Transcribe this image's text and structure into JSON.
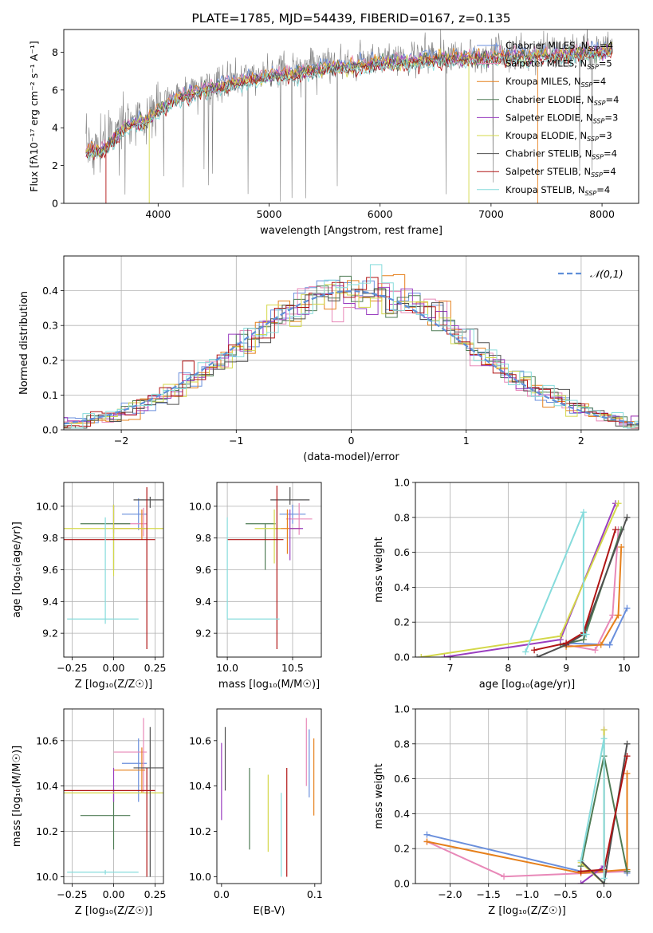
{
  "colors": {
    "Chabrier MILES": "#6a8fdc",
    "Salpeter MILES": "#e888b8",
    "Kroupa MILES": "#e6801c",
    "Chabrier ELODIE": "#4f7c55",
    "Salpeter ELODIE": "#9a3ec0",
    "Kroupa ELODIE": "#d4d84a",
    "Chabrier STELIB": "#505050",
    "Salpeter STELIB": "#b01414",
    "Kroupa STELIB": "#86dcdc",
    "gaussian": "#5f8fd8",
    "grid": "#b0b0b0",
    "observed": "#808080"
  },
  "chart_data": [
    {
      "id": "spectrum",
      "type": "line",
      "title": "PLATE=1785, MJD=54439, FIBERID=0167, z=0.135",
      "xlabel": "wavelength [Angstrom, rest frame]",
      "ylabel": "Flux [fλ10⁻¹⁷ erg cm⁻² s⁻¹ A⁻¹]",
      "xlim": [
        3150,
        8330
      ],
      "ylim": [
        0,
        9.2
      ],
      "xticks": [
        4000,
        5000,
        6000,
        7000,
        8000
      ],
      "yticks": [
        0,
        2,
        4,
        6,
        8
      ],
      "legend": "top-right",
      "legend_entries": [
        {
          "name": "Chabrier MILES",
          "nssp": "4"
        },
        {
          "name": "Salpeter MILES",
          "nssp": "5"
        },
        {
          "name": "Kroupa MILES",
          "nssp": "4"
        },
        {
          "name": "Chabrier ELODIE",
          "nssp": "4"
        },
        {
          "name": "Salpeter ELODIE",
          "nssp": "3"
        },
        {
          "name": "Kroupa ELODIE",
          "nssp": "3"
        },
        {
          "name": "Chabrier STELIB",
          "nssp": "4"
        },
        {
          "name": "Salpeter STELIB",
          "nssp": "4"
        },
        {
          "name": "Kroupa STELIB",
          "nssp": "4"
        }
      ],
      "continuum": [
        [
          3350,
          2.9
        ],
        [
          3500,
          3.0
        ],
        [
          3700,
          4.2
        ],
        [
          3900,
          4.6
        ],
        [
          4000,
          5.1
        ],
        [
          4200,
          5.8
        ],
        [
          4500,
          6.3
        ],
        [
          5000,
          6.9
        ],
        [
          5500,
          7.3
        ],
        [
          6000,
          7.6
        ],
        [
          6500,
          7.8
        ],
        [
          7000,
          7.9
        ],
        [
          7500,
          8.0
        ],
        [
          8000,
          8.2
        ],
        [
          8100,
          8.3
        ]
      ],
      "observed_noise": 0.45
    },
    {
      "id": "residuals",
      "type": "histogram",
      "xlabel": "(data-model)/error",
      "ylabel": "Normed distribution",
      "xlim": [
        -2.5,
        2.5
      ],
      "ylim": [
        0,
        0.5
      ],
      "xticks": [
        -2,
        -1,
        0,
        1,
        2
      ],
      "yticks": [
        0,
        0.1,
        0.2,
        0.3,
        0.4
      ],
      "grid": true,
      "legend": "top-right",
      "legend_label": "𝒩(0,1)",
      "bin_width": 0.1
    },
    {
      "id": "age-z",
      "type": "errorbar",
      "xlabel": "Z [log₁₀(Z/Z☉)]",
      "ylabel": "age  [log₁₀(age/yr)]",
      "xlim": [
        -0.3,
        0.3
      ],
      "ylim": [
        9.05,
        10.15
      ],
      "xticks": [
        -0.25,
        0.0,
        0.25
      ],
      "xtick_labels": [
        "−0.25",
        "0.00",
        "0.25"
      ],
      "yticks": [
        9.2,
        9.4,
        9.6,
        9.8,
        10.0
      ],
      "grid": true,
      "points": [
        {
          "model": "Chabrier MILES",
          "x": 0.15,
          "xerr": [
            0.1,
            0.05
          ],
          "y": 9.95,
          "yerr": [
            0.1,
            0.1
          ]
        },
        {
          "model": "Salpeter MILES",
          "x": 0.18,
          "xerr": [
            0.18,
            0.02
          ],
          "y": 9.89,
          "yerr": [
            0.08,
            0.1
          ]
        },
        {
          "model": "Kroupa MILES",
          "x": 0.17,
          "xerr": [
            0.17,
            0.02
          ],
          "y": 9.86,
          "yerr": [
            0.07,
            0.12
          ]
        },
        {
          "model": "Chabrier ELODIE",
          "x": 0.0,
          "xerr": [
            0.2,
            0.1
          ],
          "y": 9.89,
          "yerr": [
            0.29,
            0.12
          ]
        },
        {
          "model": "Salpeter ELODIE",
          "x": 0.0,
          "xerr": [
            0.0,
            0.0
          ],
          "y": 9.83,
          "yerr": [
            0.0,
            0.17
          ]
        },
        {
          "model": "Kroupa ELODIE",
          "x": 0.0,
          "xerr": [
            0.3,
            0.3
          ],
          "y": 9.86,
          "yerr": [
            0.3,
            0.15
          ]
        },
        {
          "model": "Chabrier STELIB",
          "x": 0.22,
          "xerr": [
            0.1,
            0.1
          ],
          "y": 10.04,
          "yerr": [
            0.05,
            0.02
          ]
        },
        {
          "model": "Salpeter STELIB",
          "x": 0.2,
          "xerr": [
            0.5,
            0.05
          ],
          "y": 9.79,
          "yerr": [
            0.69,
            0.33
          ]
        },
        {
          "model": "Kroupa STELIB",
          "x": -0.05,
          "xerr": [
            0.23,
            0.2
          ],
          "y": 9.29,
          "yerr": [
            0.03,
            0.64
          ]
        }
      ]
    },
    {
      "id": "age-mass",
      "type": "errorbar",
      "xlabel": "mass [log₁₀(M/M☉)]",
      "xlim": [
        9.92,
        10.72
      ],
      "ylim": [
        9.05,
        10.15
      ],
      "xticks": [
        10.0,
        10.5
      ],
      "xtick_labels": [
        "10.0",
        "10.5"
      ],
      "yticks": [
        9.2,
        9.4,
        9.6,
        9.8,
        10.0
      ],
      "grid": true,
      "points": [
        {
          "model": "Chabrier MILES",
          "x": 10.5,
          "xerr": [
            0.1,
            0.1
          ],
          "y": 9.95,
          "yerr": [
            0.06,
            0.06
          ]
        },
        {
          "model": "Salpeter MILES",
          "x": 10.55,
          "xerr": [
            0.1,
            0.1
          ],
          "y": 9.92,
          "yerr": [
            0.1,
            0.1
          ]
        },
        {
          "model": "Kroupa MILES",
          "x": 10.46,
          "xerr": [
            0.1,
            0.1
          ],
          "y": 9.86,
          "yerr": [
            0.16,
            0.12
          ]
        },
        {
          "model": "Chabrier ELODIE",
          "x": 10.29,
          "xerr": [
            0.15,
            0.08
          ],
          "y": 9.89,
          "yerr": [
            0.29,
            0.0
          ]
        },
        {
          "model": "Salpeter ELODIE",
          "x": 10.48,
          "xerr": [
            0.0,
            0.1
          ],
          "y": 9.86,
          "yerr": [
            0.2,
            0.12
          ]
        },
        {
          "model": "Kroupa ELODIE",
          "x": 10.36,
          "xerr": [
            0.15,
            0.05
          ],
          "y": 9.86,
          "yerr": [
            0.22,
            0.12
          ]
        },
        {
          "model": "Chabrier STELIB",
          "x": 10.48,
          "xerr": [
            0.15,
            0.15
          ],
          "y": 10.04,
          "yerr": [
            0.03,
            0.08
          ]
        },
        {
          "model": "Salpeter STELIB",
          "x": 10.38,
          "xerr": [
            0.38,
            0.05
          ],
          "y": 9.79,
          "yerr": [
            0.69,
            0.34
          ]
        },
        {
          "model": "Kroupa STELIB",
          "x": 10.0,
          "xerr": [
            0.0,
            0.4
          ],
          "y": 9.29,
          "yerr": [
            0.0,
            0.64
          ]
        }
      ]
    },
    {
      "id": "weight-age",
      "type": "line",
      "xlabel": "age  [log₁₀(age/yr)]",
      "ylabel": "mass weight",
      "xlim": [
        6.4,
        10.25
      ],
      "ylim": [
        0,
        1.0
      ],
      "xticks": [
        7,
        8,
        9,
        10
      ],
      "yticks": [
        0.0,
        0.2,
        0.4,
        0.6,
        0.8,
        1.0
      ],
      "grid": true,
      "series": [
        {
          "model": "Chabrier MILES",
          "x": [
            9.0,
            9.75,
            10.05
          ],
          "y": [
            0.08,
            0.07,
            0.28
          ]
        },
        {
          "model": "Salpeter MILES",
          "x": [
            9.0,
            9.5,
            9.8,
            9.9
          ],
          "y": [
            0.07,
            0.04,
            0.24,
            0.73
          ]
        },
        {
          "model": "Kroupa MILES",
          "x": [
            9.0,
            9.6,
            9.9,
            9.95
          ],
          "y": [
            0.06,
            0.07,
            0.24,
            0.63
          ]
        },
        {
          "model": "Chabrier ELODIE",
          "x": [
            8.9,
            9.3,
            9.95
          ],
          "y": [
            0.07,
            0.1,
            0.73
          ]
        },
        {
          "model": "Salpeter ELODIE",
          "x": [
            6.9,
            8.9,
            9.85
          ],
          "y": [
            0.0,
            0.1,
            0.88
          ]
        },
        {
          "model": "Kroupa ELODIE",
          "x": [
            6.5,
            8.9,
            9.9
          ],
          "y": [
            0.0,
            0.12,
            0.88
          ]
        },
        {
          "model": "Chabrier STELIB",
          "x": [
            8.5,
            9.0,
            9.3,
            10.05
          ],
          "y": [
            0.0,
            0.07,
            0.13,
            0.8
          ]
        },
        {
          "model": "Salpeter STELIB",
          "x": [
            8.45,
            9.0,
            9.3,
            9.85
          ],
          "y": [
            0.04,
            0.08,
            0.14,
            0.73
          ]
        },
        {
          "model": "Kroupa STELIB",
          "x": [
            8.3,
            9.3,
            9.3,
            9.35
          ],
          "y": [
            0.03,
            0.83,
            0.13,
            0.13
          ]
        }
      ]
    },
    {
      "id": "mass-z",
      "type": "errorbar",
      "xlabel": "Z [log₁₀(Z/Z☉)]",
      "ylabel": "mass [log₁₀(M/M☉)]",
      "xlim": [
        -0.3,
        0.3
      ],
      "ylim": [
        9.97,
        10.74
      ],
      "xticks": [
        -0.25,
        0.0,
        0.25
      ],
      "xtick_labels": [
        "−0.25",
        "0.00",
        "0.25"
      ],
      "yticks": [
        10.0,
        10.2,
        10.4,
        10.6
      ],
      "grid": true,
      "points": [
        {
          "model": "Chabrier MILES",
          "x": 0.15,
          "xerr": [
            0.1,
            0.05
          ],
          "y": 10.5,
          "yerr": [
            0.17,
            0.11
          ]
        },
        {
          "model": "Salpeter MILES",
          "x": 0.18,
          "xerr": [
            0.18,
            0.02
          ],
          "y": 10.55,
          "yerr": [
            0.18,
            0.15
          ]
        },
        {
          "model": "Kroupa MILES",
          "x": 0.17,
          "xerr": [
            0.17,
            0.02
          ],
          "y": 10.47,
          "yerr": [
            0.1,
            0.1
          ]
        },
        {
          "model": "Chabrier ELODIE",
          "x": 0.0,
          "xerr": [
            0.2,
            0.1
          ],
          "y": 10.27,
          "yerr": [
            0.15,
            0.12
          ]
        },
        {
          "model": "Salpeter ELODIE",
          "x": 0.0,
          "xerr": [
            0.0,
            0.0
          ],
          "y": 10.48,
          "yerr": [
            0.15,
            0.0
          ]
        },
        {
          "model": "Kroupa ELODIE",
          "x": 0.0,
          "xerr": [
            0.3,
            0.3
          ],
          "y": 10.37,
          "yerr": [
            0.0,
            0.0
          ]
        },
        {
          "model": "Chabrier STELIB",
          "x": 0.22,
          "xerr": [
            0.1,
            0.1
          ],
          "y": 10.48,
          "yerr": [
            0.48,
            0.18
          ]
        },
        {
          "model": "Salpeter STELIB",
          "x": 0.2,
          "xerr": [
            0.5,
            0.05
          ],
          "y": 10.38,
          "yerr": [
            0.38,
            0.1
          ]
        },
        {
          "model": "Kroupa STELIB",
          "x": -0.05,
          "xerr": [
            0.23,
            0.2
          ],
          "y": 10.02,
          "yerr": [
            0.01,
            0.01
          ]
        }
      ]
    },
    {
      "id": "mass-ebv",
      "type": "errorbar",
      "xlabel": "E(B-V)",
      "xlim": [
        -0.005,
        0.107
      ],
      "ylim": [
        9.97,
        10.74
      ],
      "xticks": [
        0.0,
        0.1
      ],
      "xtick_labels": [
        "0.0",
        "0.1"
      ],
      "yticks": [
        10.0,
        10.2,
        10.4,
        10.6
      ],
      "grid": false,
      "points": [
        {
          "model": "Chabrier MILES",
          "x": 0.094,
          "y": 10.5,
          "yerr": [
            0.15,
            0.15
          ]
        },
        {
          "model": "Salpeter MILES",
          "x": 0.091,
          "y": 10.55,
          "yerr": [
            0.15,
            0.15
          ]
        },
        {
          "model": "Kroupa MILES",
          "x": 0.099,
          "y": 10.44,
          "yerr": [
            0.17,
            0.17
          ]
        },
        {
          "model": "Chabrier ELODIE",
          "x": 0.03,
          "y": 10.3,
          "yerr": [
            0.18,
            0.18
          ]
        },
        {
          "model": "Salpeter ELODIE",
          "x": 0.0,
          "y": 10.42,
          "yerr": [
            0.17,
            0.17
          ]
        },
        {
          "model": "Kroupa ELODIE",
          "x": 0.05,
          "y": 10.28,
          "yerr": [
            0.17,
            0.17
          ]
        },
        {
          "model": "Chabrier STELIB",
          "x": 0.004,
          "y": 10.52,
          "yerr": [
            0.14,
            0.14
          ]
        },
        {
          "model": "Salpeter STELIB",
          "x": 0.07,
          "y": 10.3,
          "yerr": [
            0.3,
            0.18
          ]
        },
        {
          "model": "Kroupa STELIB",
          "x": 0.064,
          "y": 10.2,
          "yerr": [
            0.2,
            0.17
          ]
        }
      ]
    },
    {
      "id": "weight-z",
      "type": "line",
      "xlabel": "Z [log₁₀(Z/Z☉)]",
      "ylabel": "mass weight",
      "xlim": [
        -2.45,
        0.45
      ],
      "ylim": [
        0,
        1.0
      ],
      "xticks": [
        -2.0,
        -1.5,
        -1.0,
        -0.5,
        0.0
      ],
      "xtick_labels": [
        "−2.0",
        "−1.5",
        "−1.0",
        "−0.5",
        "0.0"
      ],
      "yticks": [
        0.0,
        0.2,
        0.4,
        0.6,
        0.8,
        1.0
      ],
      "grid": true,
      "series": [
        {
          "model": "Chabrier MILES",
          "x": [
            -2.3,
            -0.3,
            0.3,
            0.3
          ],
          "y": [
            0.28,
            0.07,
            0.07,
            0.06
          ]
        },
        {
          "model": "Salpeter MILES",
          "x": [
            -2.3,
            -1.3,
            0.3,
            0.3
          ],
          "y": [
            0.24,
            0.04,
            0.07,
            0.07
          ]
        },
        {
          "model": "Kroupa MILES",
          "x": [
            -2.3,
            -0.3,
            0.3,
            0.3
          ],
          "y": [
            0.24,
            0.06,
            0.08,
            0.63
          ]
        },
        {
          "model": "Chabrier ELODIE",
          "x": [
            -0.3,
            0.0,
            0.3
          ],
          "y": [
            0.1,
            0.73,
            0.07
          ]
        },
        {
          "model": "Salpeter ELODIE",
          "x": [
            -0.3,
            0.0,
            0.0
          ],
          "y": [
            0.0,
            0.1,
            0.88
          ]
        },
        {
          "model": "Kroupa ELODIE",
          "x": [
            -0.3,
            0.0,
            0.0
          ],
          "y": [
            0.12,
            0.0,
            0.88
          ]
        },
        {
          "model": "Chabrier STELIB",
          "x": [
            -0.3,
            0.0,
            0.3
          ],
          "y": [
            0.13,
            0.0,
            0.8
          ]
        },
        {
          "model": "Salpeter STELIB",
          "x": [
            -0.3,
            0.0,
            0.3
          ],
          "y": [
            0.07,
            0.08,
            0.73
          ]
        },
        {
          "model": "Kroupa STELIB",
          "x": [
            -0.3,
            0.0,
            0.0
          ],
          "y": [
            0.13,
            0.83,
            0.03
          ]
        }
      ]
    }
  ]
}
